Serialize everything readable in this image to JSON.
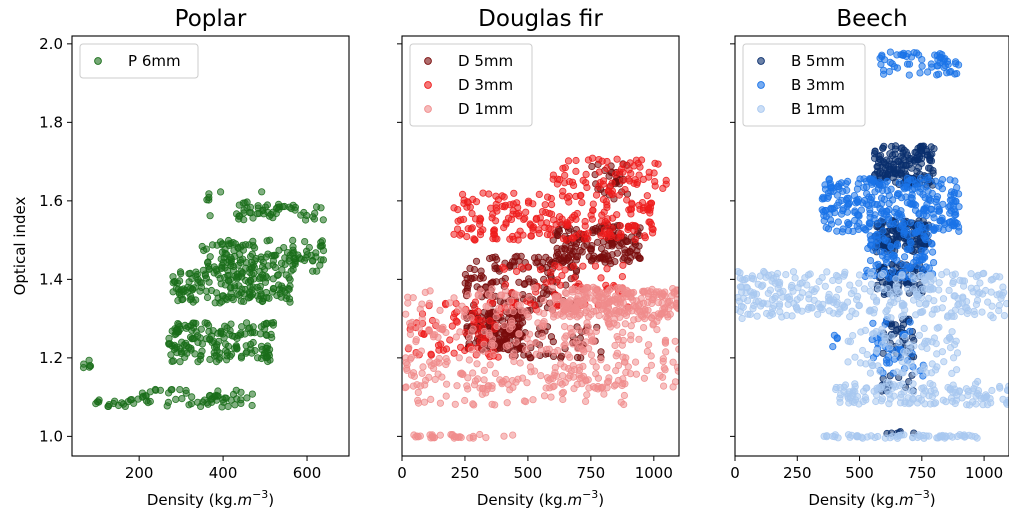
{
  "ylabel": "Optical index",
  "xlabel_prefix": "Density (kg.",
  "xlabel_var": "m",
  "xlabel_exp": "−3",
  "xlabel_suffix": ")",
  "chart_data": [
    {
      "type": "scatter",
      "title": "Poplar",
      "xlabel": "Density (kg.m^-3)",
      "ylabel": "Optical index",
      "xlim": [
        40,
        700
      ],
      "ylim": [
        0.95,
        2.02
      ],
      "xticks": [
        200,
        400,
        600
      ],
      "yticks": [
        1.0,
        1.2,
        1.4,
        1.6,
        1.8,
        2.0
      ],
      "legend_position": "top-left",
      "series": [
        {
          "name": "P 6mm",
          "color": "#1a6e1a",
          "clusters": [
            {
              "x": [
                60,
                90
              ],
              "y": [
                1.17,
                1.2
              ],
              "n": 6
            },
            {
              "x": [
                90,
                200
              ],
              "y": [
                1.075,
                1.095
              ],
              "n": 18
            },
            {
              "x": [
                200,
                470
              ],
              "y": [
                1.075,
                1.12
              ],
              "n": 60
            },
            {
              "x": [
                270,
                520
              ],
              "y": [
                1.19,
                1.29
              ],
              "n": 170
            },
            {
              "x": [
                280,
                560
              ],
              "y": [
                1.34,
                1.42
              ],
              "n": 160
            },
            {
              "x": [
                350,
                640
              ],
              "y": [
                1.42,
                1.5
              ],
              "n": 140
            },
            {
              "x": [
                430,
                640
              ],
              "y": [
                1.55,
                1.6
              ],
              "n": 50
            },
            {
              "x": [
                300,
                500
              ],
              "y": [
                1.56,
                1.63
              ],
              "n": 10
            }
          ]
        }
      ]
    },
    {
      "type": "scatter",
      "title": "Douglas fir",
      "xlabel": "Density (kg.m^-3)",
      "xlim": [
        0,
        1100
      ],
      "ylim": [
        0.95,
        2.02
      ],
      "xticks": [
        0,
        250,
        500,
        750,
        1000
      ],
      "yticks": [
        1.0,
        1.2,
        1.4,
        1.6,
        1.8,
        2.0
      ],
      "legend_position": "top-left",
      "series": [
        {
          "name": "D 5mm",
          "color": "#7a0c0c",
          "clusters": [
            {
              "x": [
                250,
                480
              ],
              "y": [
                1.22,
                1.32
              ],
              "n": 180
            },
            {
              "x": [
                250,
                700
              ],
              "y": [
                1.32,
                1.46
              ],
              "n": 140
            },
            {
              "x": [
                600,
                950
              ],
              "y": [
                1.44,
                1.54
              ],
              "n": 160
            },
            {
              "x": [
                400,
                800
              ],
              "y": [
                1.2,
                1.28
              ],
              "n": 50
            },
            {
              "x": [
                750,
                900
              ],
              "y": [
                1.6,
                1.7
              ],
              "n": 30
            }
          ]
        },
        {
          "name": "D 3mm",
          "color": "#ee1c1c",
          "clusters": [
            {
              "x": [
                200,
                1000
              ],
              "y": [
                1.5,
                1.62
              ],
              "n": 220
            },
            {
              "x": [
                600,
                1050
              ],
              "y": [
                1.62,
                1.71
              ],
              "n": 70
            },
            {
              "x": [
                20,
                400
              ],
              "y": [
                1.2,
                1.35
              ],
              "n": 70
            },
            {
              "x": [
                400,
                900
              ],
              "y": [
                1.32,
                1.44
              ],
              "n": 60
            }
          ]
        },
        {
          "name": "D 1mm",
          "color": "#f08c8c",
          "clusters": [
            {
              "x": [
                0,
                1100
              ],
              "y": [
                1.12,
                1.38
              ],
              "n": 380
            },
            {
              "x": [
                600,
                1100
              ],
              "y": [
                1.3,
                1.38
              ],
              "n": 200
            },
            {
              "x": [
                0,
                900
              ],
              "y": [
                1.08,
                1.15
              ],
              "n": 60
            },
            {
              "x": [
                30,
                530
              ],
              "y": [
                0.995,
                1.005
              ],
              "n": 30
            }
          ]
        }
      ]
    },
    {
      "type": "scatter",
      "title": "Beech",
      "xlabel": "Density (kg.m^-3)",
      "xlim": [
        0,
        1100
      ],
      "ylim": [
        0.95,
        2.02
      ],
      "xticks": [
        0,
        250,
        500,
        750,
        1000
      ],
      "yticks": [
        1.0,
        1.2,
        1.4,
        1.6,
        1.8,
        2.0
      ],
      "legend_position": "top-left",
      "series": [
        {
          "name": "B 5mm",
          "color": "#0a2f6e",
          "clusters": [
            {
              "x": [
                560,
                800
              ],
              "y": [
                1.64,
                1.74
              ],
              "n": 160
            },
            {
              "x": [
                560,
                780
              ],
              "y": [
                1.47,
                1.55
              ],
              "n": 140
            },
            {
              "x": [
                560,
                760
              ],
              "y": [
                1.36,
                1.44
              ],
              "n": 80
            },
            {
              "x": [
                590,
                720
              ],
              "y": [
                1.2,
                1.3
              ],
              "n": 40
            },
            {
              "x": [
                580,
                720
              ],
              "y": [
                1.1,
                1.16
              ],
              "n": 15
            },
            {
              "x": [
                600,
                720
              ],
              "y": [
                1.005,
                1.015
              ],
              "n": 6
            }
          ]
        },
        {
          "name": "B 3mm",
          "color": "#1a73e8",
          "clusters": [
            {
              "x": [
                580,
                900
              ],
              "y": [
                1.92,
                1.98
              ],
              "n": 60
            },
            {
              "x": [
                350,
                900
              ],
              "y": [
                1.52,
                1.66
              ],
              "n": 300
            },
            {
              "x": [
                520,
                800
              ],
              "y": [
                1.4,
                1.52
              ],
              "n": 100
            },
            {
              "x": [
                550,
                760
              ],
              "y": [
                1.15,
                1.3
              ],
              "n": 40
            },
            {
              "x": [
                350,
                420
              ],
              "y": [
                1.22,
                1.26
              ],
              "n": 4
            }
          ]
        },
        {
          "name": "B 1mm",
          "color": "#a8c8f0",
          "clusters": [
            {
              "x": [
                0,
                1100
              ],
              "y": [
                1.3,
                1.42
              ],
              "n": 320
            },
            {
              "x": [
                400,
                1100
              ],
              "y": [
                1.08,
                1.14
              ],
              "n": 140
            },
            {
              "x": [
                350,
                1000
              ],
              "y": [
                0.995,
                1.005
              ],
              "n": 60
            },
            {
              "x": [
                450,
                900
              ],
              "y": [
                1.16,
                1.28
              ],
              "n": 80
            }
          ]
        }
      ]
    }
  ]
}
